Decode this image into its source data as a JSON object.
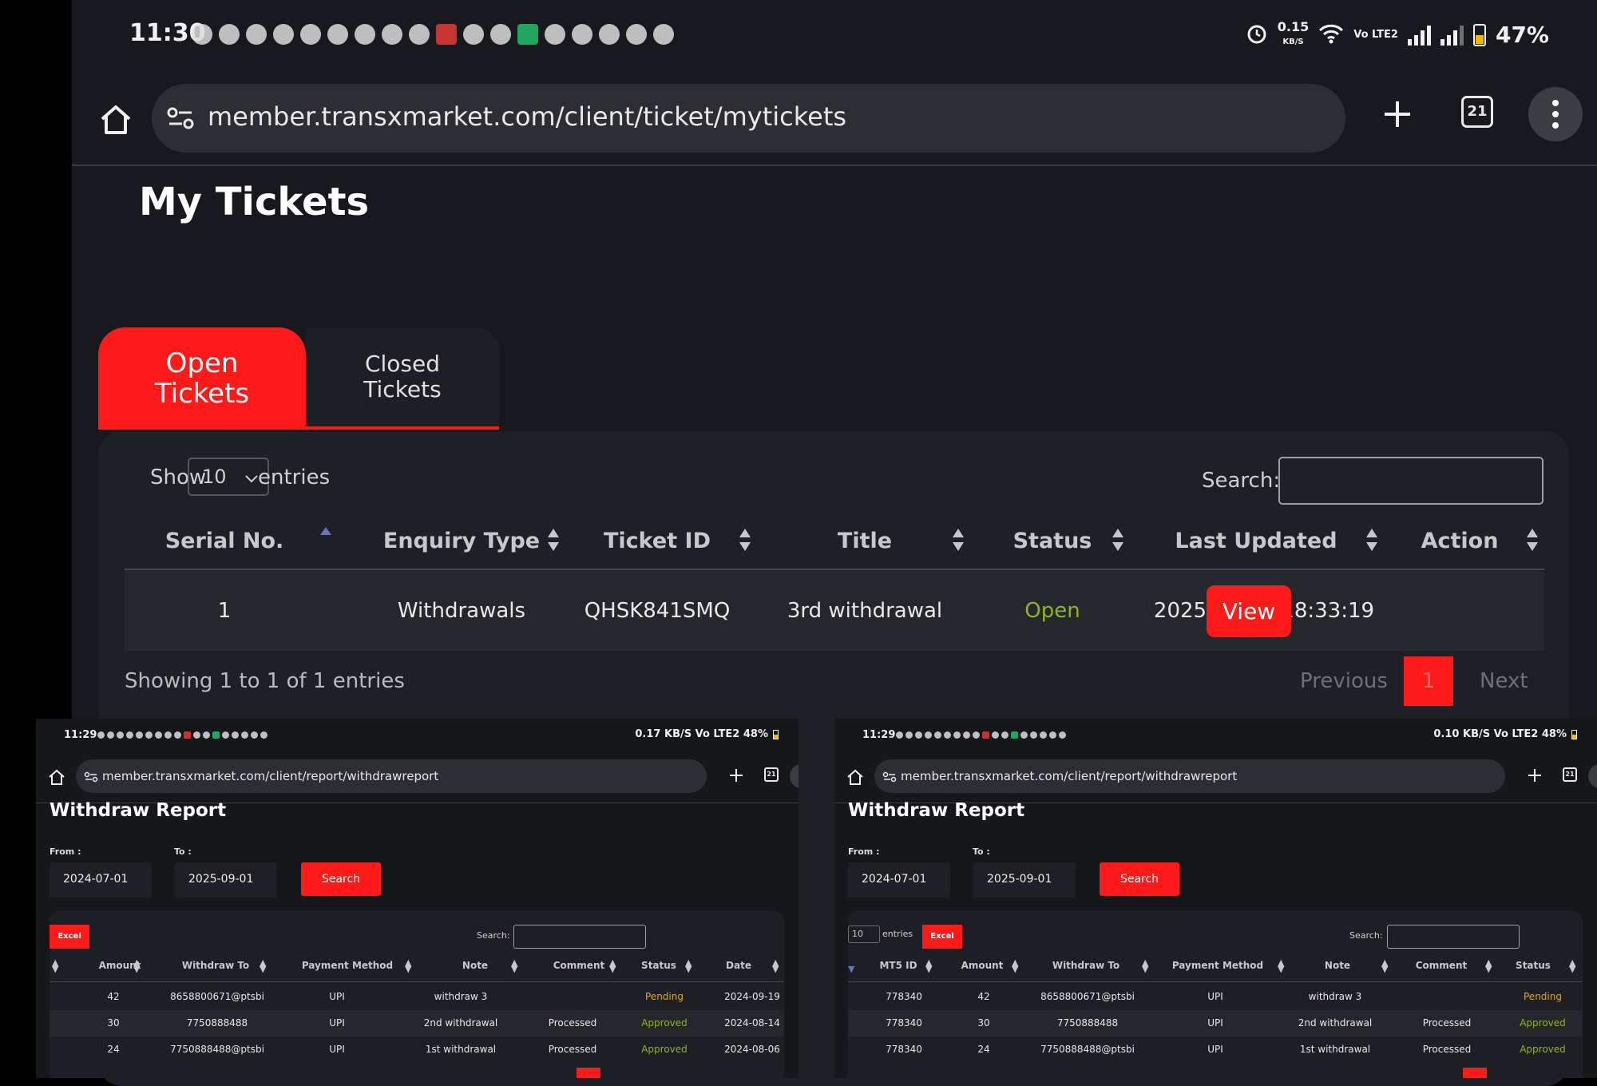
{
  "main": {
    "status_bar": {
      "time": "11:30",
      "net_speed": "0.15",
      "net_unit": "KB/S",
      "volte": "Vo LTE2",
      "battery": "47%"
    },
    "browser": {
      "url": "member.transxmarket.com/client/ticket/mytickets",
      "tab_count": "21"
    },
    "page_title": "My Tickets",
    "tabs": {
      "open": "Open Tickets",
      "closed": "Closed Tickets"
    },
    "table_controls": {
      "show": "Show",
      "entries_value": "10",
      "entries": "entries",
      "search": "Search:"
    },
    "columns": [
      "Serial No.",
      "Enquiry Type",
      "Ticket ID",
      "Title",
      "Status",
      "Last Updated",
      "Action"
    ],
    "rows": [
      {
        "serial": "1",
        "enquiry": "Withdrawals",
        "ticket_id": "QHSK841SMQ",
        "title": "3rd withdrawal",
        "status": "Open",
        "updated": "2025-01-18 18:33:19",
        "action": "View"
      }
    ],
    "info": "Showing 1 to 1 of 1 entries",
    "pagination": {
      "previous": "Previous",
      "current": "1",
      "next": "Next"
    }
  },
  "mini_left": {
    "status_bar": {
      "time": "11:29",
      "right": "0.17 KB/S Vo LTE2 48%"
    },
    "browser": {
      "url": "member.transxmarket.com/client/report/withdrawreport",
      "tab_count": "21"
    },
    "page_title": "Withdraw Report",
    "filters": {
      "from_label": "From :",
      "to_label": "To :",
      "from": "2024-07-01",
      "to": "2025-09-01",
      "search_btn": "Search"
    },
    "excel": "Excel",
    "search_label": "Search:",
    "columns": [
      "Amount",
      "Withdraw To",
      "Payment Method",
      "Note",
      "Comment",
      "Status",
      "Date"
    ],
    "rows": [
      {
        "amount": "42",
        "to": "8658800671@ptsbi",
        "method": "UPI",
        "note": "withdraw 3",
        "comment": "",
        "status": "Pending",
        "date": "2024-09-19"
      },
      {
        "amount": "30",
        "to": "7750888488",
        "method": "UPI",
        "note": "2nd withdrawal",
        "comment": "Processed",
        "status": "Approved",
        "date": "2024-08-14"
      },
      {
        "amount": "24",
        "to": "7750888488@ptsbi",
        "method": "UPI",
        "note": "1st withdrawal",
        "comment": "Processed",
        "status": "Approved",
        "date": "2024-08-06"
      }
    ]
  },
  "mini_right": {
    "status_bar": {
      "time": "11:29",
      "right": "0.10 KB/S Vo LTE2 48%"
    },
    "browser": {
      "url": "member.transxmarket.com/client/report/withdrawreport",
      "tab_count": "21"
    },
    "page_title": "Withdraw Report",
    "filters": {
      "from_label": "From :",
      "to_label": "To :",
      "from": "2024-07-01",
      "to": "2025-09-01",
      "search_btn": "Search"
    },
    "show_value": "10",
    "entries": "entries",
    "excel": "Excel",
    "search_label": "Search:",
    "columns": [
      "MT5 ID",
      "Amount",
      "Withdraw To",
      "Payment Method",
      "Note",
      "Comment",
      "Status"
    ],
    "rows": [
      {
        "mt5": "778340",
        "amount": "42",
        "to": "8658800671@ptsbi",
        "method": "UPI",
        "note": "withdraw 3",
        "comment": "",
        "status": "Pending"
      },
      {
        "mt5": "778340",
        "amount": "30",
        "to": "7750888488",
        "method": "UPI",
        "note": "2nd withdrawal",
        "comment": "Processed",
        "status": "Approved"
      },
      {
        "mt5": "778340",
        "amount": "24",
        "to": "7750888488@ptsbi",
        "method": "UPI",
        "note": "1st withdrawal",
        "comment": "Processed",
        "status": "Approved"
      }
    ]
  }
}
